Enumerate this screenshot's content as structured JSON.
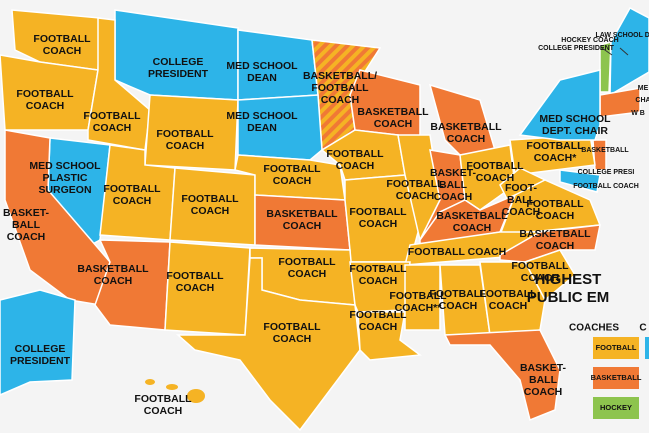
{
  "regions": [
    {
      "lines": [
        "FOOTBALL",
        "COACH"
      ],
      "color": "#f5b324"
    },
    {
      "lines": [
        "COLLEGE",
        "PRESIDENT"
      ],
      "color": "#2db4e8"
    },
    {
      "lines": [
        "MED SCHOOL",
        "DEAN"
      ],
      "color": "#2db4e8"
    },
    {
      "lines": [
        "BASKETBALL/",
        "FOOTBALL",
        "COACH"
      ],
      "color": "#f07935"
    },
    {
      "lines": [
        "FOOTBALL",
        "COACH"
      ],
      "color": "#f5b324"
    },
    {
      "lines": [
        "FOOTBALL",
        "COACH"
      ],
      "color": "#f5b324"
    },
    {
      "lines": [
        "FOOTBALL",
        "COACH"
      ],
      "color": "#f5b324"
    },
    {
      "lines": [
        "MED SCHOOL",
        "DEAN"
      ],
      "color": "#2db4e8"
    },
    {
      "lines": [
        "BASKETBALL",
        "COACH"
      ],
      "color": "#f07935"
    },
    {
      "lines": [
        "BASKETBALL",
        "COACH"
      ],
      "color": "#f07935"
    },
    {
      "lines": [
        "MED SCHOOL",
        "PLASTIC",
        "SURGEON"
      ],
      "color": "#2db4e8"
    },
    {
      "lines": [
        "BASKET-",
        "BALL",
        "COACH"
      ],
      "color": "#f07935"
    },
    {
      "lines": [
        "FOOTBALL",
        "COACH"
      ],
      "color": "#f5b324"
    },
    {
      "lines": [
        "FOOTBALL",
        "COACH"
      ],
      "color": "#f5b324"
    },
    {
      "lines": [
        "FOOTBALL",
        "COACH"
      ],
      "color": "#f5b324"
    },
    {
      "lines": [
        "FOOTBALL",
        "COACH"
      ],
      "color": "#f5b324"
    },
    {
      "lines": [
        "BASKETBALL",
        "COACH"
      ],
      "color": "#f07935"
    },
    {
      "lines": [
        "FOOTBALL",
        "COACH"
      ],
      "color": "#f5b324"
    },
    {
      "lines": [
        "FOOTBALL",
        "COACH"
      ],
      "color": "#f5b324"
    },
    {
      "lines": [
        "BASKET-",
        "BALL",
        "COACH"
      ],
      "color": "#f07935"
    },
    {
      "lines": [
        "FOOTBALL",
        "COACH"
      ],
      "color": "#f5b324"
    },
    {
      "lines": [
        "FOOTBALL",
        "COACH*"
      ],
      "color": "#f5b324"
    },
    {
      "lines": [
        "FOOT-",
        "BALL",
        "COACH"
      ],
      "color": "#f5b324"
    },
    {
      "lines": [
        "FOOTBALL",
        "COACH"
      ],
      "color": "#f5b324"
    },
    {
      "lines": [
        "BASKETBALL",
        "COACH"
      ],
      "color": "#f07935"
    },
    {
      "lines": [
        "FOOTBALL COACH"
      ],
      "color": "#f5b324"
    },
    {
      "lines": [
        "BASKETBALL",
        "COACH"
      ],
      "color": "#f07935"
    },
    {
      "lines": [
        "BASKETBALL",
        "COACH"
      ],
      "color": "#f07935"
    },
    {
      "lines": [
        "FOOTBALL",
        "COACH"
      ],
      "color": "#f5b324"
    },
    {
      "lines": [
        "FOOTBALL",
        "COACH"
      ],
      "color": "#f5b324"
    },
    {
      "lines": [
        "FOOTBALL",
        "COACH"
      ],
      "color": "#f5b324"
    },
    {
      "lines": [
        "FOOTBALL",
        "COACH"
      ],
      "color": "#f5b324"
    },
    {
      "lines": [
        "FOOTBALL",
        "COACH"
      ],
      "color": "#f5b324"
    },
    {
      "lines": [
        "FOOTBALL",
        "COACH"
      ],
      "color": "#f5b324"
    },
    {
      "lines": [
        "FOOTBALL",
        "COACH**"
      ],
      "color": "#f5b324"
    },
    {
      "lines": [
        "FOOTBALL",
        "COACH"
      ],
      "color": "#f5b324"
    },
    {
      "lines": [
        "FOOTBALL",
        "COACH"
      ],
      "color": "#f5b324"
    },
    {
      "lines": [
        "BASKET-",
        "BALL",
        "COACH"
      ],
      "color": "#f07935"
    },
    {
      "lines": [
        "COLLEGE",
        "PRESIDENT"
      ],
      "color": "#2db4e8"
    },
    {
      "lines": [
        "FOOTBALL",
        "COACH"
      ],
      "color": "#f5b324"
    },
    {
      "lines": [
        "MED SCHOOL",
        "DEPT. CHAIR"
      ],
      "color": "#2db4e8"
    }
  ],
  "callouts": [
    "HOCKEY COACH",
    "COLLEGE PRESIDENT",
    "LAW SCHOOL DEAN",
    "ME",
    "CHA",
    "W B",
    "BASKETBALL",
    "COLLEGE PRESI",
    "FOOTBALL COACH"
  ],
  "title": [
    "HIGHEST",
    "PUBLIC EM"
  ],
  "legend": {
    "headings": [
      "COACHES",
      "C"
    ],
    "items": [
      {
        "label": "FOOTBALL",
        "color": "#f5b324"
      },
      {
        "label": "BASKETBALL",
        "color": "#f07935"
      },
      {
        "label": "HOCKEY",
        "color": "#8dc44e"
      }
    ]
  }
}
